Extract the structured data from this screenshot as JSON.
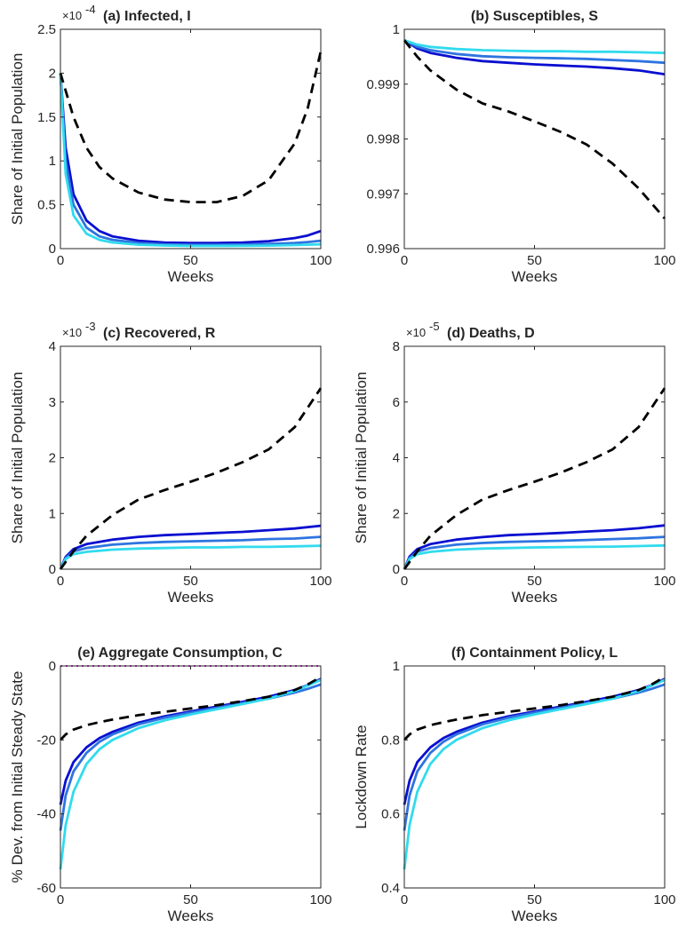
{
  "figure": {
    "series_colors": [
      "#0a0fd0",
      "#2e74e0",
      "#31dbee"
    ],
    "baseline_color": "#000000",
    "reference_color": "#e020e0"
  },
  "chart_data": [
    {
      "type": "line",
      "title": "(a) Infected, I",
      "xlabel": "Weeks",
      "ylabel": "Share of Initial Population",
      "exponent": "-4",
      "xlim": [
        0,
        100
      ],
      "ylim": [
        0,
        2.5
      ],
      "xticks": [
        0,
        50,
        100
      ],
      "xticklabels": [
        "0",
        "50",
        "100"
      ],
      "yticks": [
        0,
        0.5,
        1,
        1.5,
        2,
        2.5
      ],
      "yticklabels": [
        "0",
        "0.5",
        "1",
        "1.5",
        "2",
        "2.5"
      ],
      "x": [
        0,
        2,
        5,
        10,
        15,
        20,
        30,
        40,
        50,
        60,
        70,
        80,
        90,
        95,
        100
      ],
      "series": [
        {
          "style": "solid",
          "color": "#0a0fd0",
          "values": [
            2.0,
            1.15,
            0.62,
            0.32,
            0.2,
            0.14,
            0.09,
            0.07,
            0.065,
            0.065,
            0.07,
            0.085,
            0.12,
            0.15,
            0.2
          ]
        },
        {
          "style": "solid",
          "color": "#2e74e0",
          "values": [
            2.0,
            1.0,
            0.5,
            0.24,
            0.14,
            0.1,
            0.065,
            0.05,
            0.045,
            0.045,
            0.047,
            0.053,
            0.065,
            0.075,
            0.09
          ]
        },
        {
          "style": "solid",
          "color": "#31dbee",
          "values": [
            2.0,
            0.85,
            0.38,
            0.17,
            0.1,
            0.07,
            0.045,
            0.035,
            0.03,
            0.03,
            0.031,
            0.034,
            0.04,
            0.045,
            0.05
          ]
        },
        {
          "style": "dashed",
          "color": "#000000",
          "values": [
            2.0,
            1.8,
            1.5,
            1.15,
            0.93,
            0.8,
            0.64,
            0.56,
            0.53,
            0.53,
            0.6,
            0.78,
            1.2,
            1.6,
            2.25
          ]
        }
      ]
    },
    {
      "type": "line",
      "title": "(b) Susceptibles, S",
      "xlabel": "Weeks",
      "ylabel": "",
      "exponent": "",
      "xlim": [
        0,
        100
      ],
      "ylim": [
        0.996,
        1.0
      ],
      "xticks": [
        0,
        50,
        100
      ],
      "xticklabels": [
        "0",
        "50",
        "100"
      ],
      "yticks": [
        0.996,
        0.997,
        0.998,
        0.999,
        1.0
      ],
      "yticklabels": [
        "0.996",
        "0.997",
        "0.998",
        "0.999",
        "1"
      ],
      "x": [
        0,
        5,
        10,
        20,
        30,
        40,
        50,
        60,
        70,
        80,
        90,
        100
      ],
      "series": [
        {
          "style": "solid",
          "color": "#0a0fd0",
          "values": [
            0.9998,
            0.99965,
            0.99957,
            0.99948,
            0.99942,
            0.99939,
            0.99936,
            0.99934,
            0.99932,
            0.99929,
            0.99925,
            0.99918
          ]
        },
        {
          "style": "solid",
          "color": "#2e74e0",
          "values": [
            0.9998,
            0.99968,
            0.99962,
            0.99955,
            0.99951,
            0.99949,
            0.99948,
            0.99947,
            0.99946,
            0.99944,
            0.99942,
            0.99939
          ]
        },
        {
          "style": "solid",
          "color": "#31dbee",
          "values": [
            0.9998,
            0.99972,
            0.99968,
            0.99964,
            0.99962,
            0.99961,
            0.9996,
            0.9996,
            0.99959,
            0.99959,
            0.99958,
            0.99957
          ]
        },
        {
          "style": "dashed",
          "color": "#000000",
          "values": [
            0.9998,
            0.9995,
            0.99925,
            0.9989,
            0.99865,
            0.9985,
            0.99832,
            0.99813,
            0.9979,
            0.99755,
            0.9971,
            0.99655
          ]
        }
      ]
    },
    {
      "type": "line",
      "title": "(c) Recovered, R",
      "xlabel": "Weeks",
      "ylabel": "Share of Initial Population",
      "exponent": "-3",
      "xlim": [
        0,
        100
      ],
      "ylim": [
        0,
        4
      ],
      "xticks": [
        0,
        50,
        100
      ],
      "xticklabels": [
        "0",
        "50",
        "100"
      ],
      "yticks": [
        0,
        1,
        2,
        3,
        4
      ],
      "yticklabels": [
        "0",
        "1",
        "2",
        "3",
        "4"
      ],
      "x": [
        0,
        2,
        5,
        10,
        20,
        30,
        40,
        50,
        60,
        70,
        80,
        90,
        100
      ],
      "series": [
        {
          "style": "solid",
          "color": "#0a0fd0",
          "values": [
            0,
            0.22,
            0.36,
            0.45,
            0.53,
            0.58,
            0.61,
            0.63,
            0.65,
            0.67,
            0.7,
            0.73,
            0.78
          ]
        },
        {
          "style": "solid",
          "color": "#2e74e0",
          "values": [
            0,
            0.2,
            0.32,
            0.38,
            0.44,
            0.47,
            0.49,
            0.5,
            0.51,
            0.52,
            0.54,
            0.55,
            0.58
          ]
        },
        {
          "style": "solid",
          "color": "#31dbee",
          "values": [
            0,
            0.18,
            0.27,
            0.31,
            0.35,
            0.37,
            0.38,
            0.39,
            0.39,
            0.4,
            0.4,
            0.41,
            0.42
          ]
        },
        {
          "style": "dashed",
          "color": "#000000",
          "values": [
            0,
            0.13,
            0.32,
            0.6,
            0.97,
            1.25,
            1.42,
            1.57,
            1.73,
            1.92,
            2.15,
            2.55,
            3.25
          ]
        }
      ]
    },
    {
      "type": "line",
      "title": "(d) Deaths, D",
      "xlabel": "Weeks",
      "ylabel": "Share of Initial Population",
      "exponent": "-5",
      "xlim": [
        0,
        100
      ],
      "ylim": [
        0,
        8
      ],
      "xticks": [
        0,
        50,
        100
      ],
      "xticklabels": [
        "0",
        "50",
        "100"
      ],
      "yticks": [
        0,
        2,
        4,
        6,
        8
      ],
      "yticklabels": [
        "0",
        "2",
        "4",
        "6",
        "8"
      ],
      "x": [
        0,
        2,
        5,
        10,
        20,
        30,
        40,
        50,
        60,
        70,
        80,
        90,
        100
      ],
      "series": [
        {
          "style": "solid",
          "color": "#0a0fd0",
          "values": [
            0,
            0.45,
            0.72,
            0.9,
            1.06,
            1.15,
            1.22,
            1.26,
            1.3,
            1.35,
            1.4,
            1.47,
            1.57
          ]
        },
        {
          "style": "solid",
          "color": "#2e74e0",
          "values": [
            0,
            0.4,
            0.63,
            0.76,
            0.88,
            0.94,
            0.98,
            1.0,
            1.02,
            1.05,
            1.08,
            1.11,
            1.16
          ]
        },
        {
          "style": "solid",
          "color": "#31dbee",
          "values": [
            0,
            0.36,
            0.54,
            0.62,
            0.7,
            0.74,
            0.76,
            0.78,
            0.79,
            0.8,
            0.81,
            0.83,
            0.85
          ]
        },
        {
          "style": "dashed",
          "color": "#000000",
          "values": [
            0,
            0.26,
            0.64,
            1.2,
            1.94,
            2.5,
            2.84,
            3.14,
            3.46,
            3.84,
            4.3,
            5.1,
            6.5
          ]
        }
      ]
    },
    {
      "type": "line",
      "title": "(e) Aggregate Consumption, C",
      "xlabel": "Weeks",
      "ylabel": "% Dev. from Initial Steady State",
      "exponent": "",
      "xlim": [
        0,
        100
      ],
      "ylim": [
        -60,
        0
      ],
      "xticks": [
        0,
        50,
        100
      ],
      "xticklabels": [
        "0",
        "50",
        "100"
      ],
      "yticks": [
        -60,
        -40,
        -20,
        0
      ],
      "yticklabels": [
        "-60",
        "-40",
        "-20",
        "0"
      ],
      "x": [
        0,
        2,
        5,
        10,
        15,
        20,
        30,
        40,
        50,
        60,
        70,
        80,
        90,
        95,
        100
      ],
      "series": [
        {
          "style": "solid",
          "color": "#0a0fd0",
          "values": [
            -37.5,
            -31,
            -26,
            -22,
            -19.5,
            -17.8,
            -15.3,
            -13.6,
            -12.3,
            -11,
            -9.7,
            -8.3,
            -6.5,
            -5.2,
            -3.5
          ]
        },
        {
          "style": "solid",
          "color": "#2e74e0",
          "values": [
            -44.5,
            -35,
            -28.5,
            -23.5,
            -20.5,
            -18.5,
            -15.8,
            -14,
            -12.6,
            -11.3,
            -10,
            -8.8,
            -7.2,
            -6.2,
            -5
          ]
        },
        {
          "style": "solid",
          "color": "#31dbee",
          "values": [
            -55,
            -43,
            -34,
            -26.5,
            -22.5,
            -20,
            -16.8,
            -14.7,
            -13.1,
            -11.7,
            -10.3,
            -8.8,
            -6.8,
            -5.3,
            -3.8
          ]
        },
        {
          "style": "dashed",
          "color": "#000000",
          "values": [
            -20,
            -18.5,
            -17.2,
            -16,
            -15.2,
            -14.5,
            -13.3,
            -12.4,
            -11.5,
            -10.6,
            -9.5,
            -8.3,
            -6.5,
            -5,
            -3
          ]
        },
        {
          "style": "dotted",
          "color": "#e020e0",
          "values": [
            0,
            0,
            0,
            0,
            0,
            0,
            0,
            0,
            0,
            0,
            0,
            0,
            0,
            0,
            0
          ]
        }
      ]
    },
    {
      "type": "line",
      "title": "(f) Containment Policy, L",
      "xlabel": "Weeks",
      "ylabel": "Lockdown Rate",
      "exponent": "",
      "xlim": [
        0,
        100
      ],
      "ylim": [
        0.4,
        1.0
      ],
      "xticks": [
        0,
        50,
        100
      ],
      "xticklabels": [
        "0",
        "50",
        "100"
      ],
      "yticks": [
        0.4,
        0.6,
        0.8,
        1.0
      ],
      "yticklabels": [
        "0.4",
        "0.6",
        "0.8",
        "1"
      ],
      "x": [
        0,
        2,
        5,
        10,
        15,
        20,
        30,
        40,
        50,
        60,
        70,
        80,
        90,
        95,
        100
      ],
      "series": [
        {
          "style": "solid",
          "color": "#0a0fd0",
          "values": [
            0.625,
            0.69,
            0.74,
            0.78,
            0.805,
            0.822,
            0.847,
            0.864,
            0.877,
            0.89,
            0.903,
            0.917,
            0.935,
            0.948,
            0.965
          ]
        },
        {
          "style": "solid",
          "color": "#2e74e0",
          "values": [
            0.555,
            0.65,
            0.715,
            0.765,
            0.795,
            0.815,
            0.842,
            0.86,
            0.874,
            0.887,
            0.9,
            0.912,
            0.928,
            0.938,
            0.95
          ]
        },
        {
          "style": "solid",
          "color": "#31dbee",
          "values": [
            0.45,
            0.57,
            0.66,
            0.735,
            0.775,
            0.8,
            0.832,
            0.853,
            0.869,
            0.883,
            0.897,
            0.912,
            0.932,
            0.947,
            0.962
          ]
        },
        {
          "style": "dashed",
          "color": "#000000",
          "values": [
            0.8,
            0.815,
            0.828,
            0.84,
            0.848,
            0.855,
            0.867,
            0.876,
            0.885,
            0.894,
            0.905,
            0.917,
            0.935,
            0.95,
            0.97
          ]
        }
      ]
    }
  ]
}
